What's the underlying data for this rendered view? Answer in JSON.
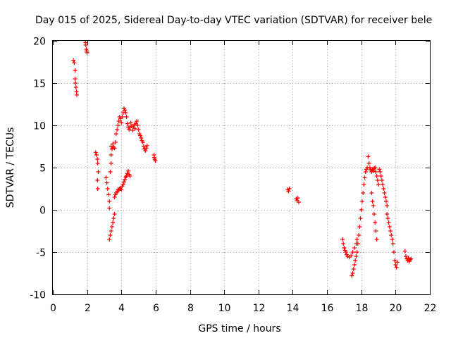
{
  "chart_data": {
    "type": "scatter",
    "title": "Day 015 of 2025, Sidereal Day-to-day VTEC variation (SDTVAR) for receiver bele",
    "xlabel": "GPS time / hours",
    "ylabel": "SDTVAR / TECUs",
    "xlim": [
      0,
      22
    ],
    "ylim": [
      -10,
      20
    ],
    "xticks": [
      0,
      2,
      4,
      6,
      8,
      10,
      12,
      14,
      16,
      18,
      20,
      22
    ],
    "yticks": [
      -10,
      -5,
      0,
      5,
      10,
      15,
      20
    ],
    "grid": true,
    "marker": "+",
    "color": "#ff0000",
    "series": [
      {
        "name": "SDTVAR",
        "points": [
          [
            1.2,
            17.7
          ],
          [
            1.25,
            17.4
          ],
          [
            1.3,
            16.5
          ],
          [
            1.3,
            15.5
          ],
          [
            1.32,
            15.0
          ],
          [
            1.35,
            14.5
          ],
          [
            1.38,
            14.0
          ],
          [
            1.4,
            13.6
          ],
          [
            1.9,
            19.8
          ],
          [
            1.92,
            19.5
          ],
          [
            1.95,
            19.0
          ],
          [
            1.97,
            18.8
          ],
          [
            2.0,
            18.6
          ],
          [
            2.5,
            6.8
          ],
          [
            2.55,
            6.5
          ],
          [
            2.6,
            6.0
          ],
          [
            2.62,
            5.5
          ],
          [
            2.65,
            4.5
          ],
          [
            2.6,
            3.5
          ],
          [
            2.62,
            2.5
          ],
          [
            3.1,
            3.8
          ],
          [
            3.15,
            3.2
          ],
          [
            3.2,
            2.5
          ],
          [
            3.25,
            1.8
          ],
          [
            3.3,
            1.0
          ],
          [
            3.3,
            0.2
          ],
          [
            3.3,
            -3.5
          ],
          [
            3.35,
            -3.0
          ],
          [
            3.4,
            -2.5
          ],
          [
            3.45,
            -2.0
          ],
          [
            3.5,
            -1.5
          ],
          [
            3.55,
            -1.0
          ],
          [
            3.6,
            -0.5
          ],
          [
            3.35,
            4.5
          ],
          [
            3.4,
            5.5
          ],
          [
            3.4,
            6.5
          ],
          [
            3.4,
            7.5
          ],
          [
            3.45,
            7.2
          ],
          [
            3.5,
            7.8
          ],
          [
            3.55,
            7.4
          ],
          [
            3.6,
            7.3
          ],
          [
            3.65,
            8.0
          ],
          [
            3.7,
            9.0
          ],
          [
            3.75,
            9.5
          ],
          [
            3.8,
            10.0
          ],
          [
            3.85,
            10.5
          ],
          [
            3.9,
            11.0
          ],
          [
            3.95,
            10.8
          ],
          [
            4.0,
            10.3
          ],
          [
            4.05,
            11.0
          ],
          [
            4.1,
            11.5
          ],
          [
            4.15,
            12.0
          ],
          [
            4.2,
            11.8
          ],
          [
            4.25,
            11.5
          ],
          [
            4.3,
            11.0
          ],
          [
            4.35,
            10.2
          ],
          [
            4.4,
            9.8
          ],
          [
            4.45,
            9.5
          ],
          [
            4.5,
            9.8
          ],
          [
            4.55,
            10.3
          ],
          [
            4.6,
            9.9
          ],
          [
            4.65,
            9.4
          ],
          [
            4.7,
            9.8
          ],
          [
            4.75,
            10.1
          ],
          [
            4.8,
            9.6
          ],
          [
            4.85,
            10.2
          ],
          [
            4.9,
            10.5
          ],
          [
            4.95,
            10.0
          ],
          [
            5.0,
            9.5
          ],
          [
            5.05,
            9.0
          ],
          [
            5.1,
            8.8
          ],
          [
            5.15,
            8.5
          ],
          [
            5.2,
            8.2
          ],
          [
            5.25,
            8.0
          ],
          [
            5.3,
            7.5
          ],
          [
            5.35,
            7.2
          ],
          [
            5.4,
            7.0
          ],
          [
            5.45,
            7.3
          ],
          [
            5.5,
            7.6
          ],
          [
            5.9,
            6.5
          ],
          [
            5.92,
            6.2
          ],
          [
            5.95,
            6.0
          ],
          [
            5.98,
            5.8
          ],
          [
            3.6,
            1.5
          ],
          [
            3.65,
            1.8
          ],
          [
            3.7,
            2.0
          ],
          [
            3.75,
            2.2
          ],
          [
            3.8,
            2.4
          ],
          [
            3.85,
            2.3
          ],
          [
            3.9,
            2.5
          ],
          [
            3.95,
            2.6
          ],
          [
            4.0,
            2.4
          ],
          [
            4.05,
            2.8
          ],
          [
            4.1,
            3.0
          ],
          [
            4.15,
            3.3
          ],
          [
            4.2,
            3.6
          ],
          [
            4.25,
            3.9
          ],
          [
            4.3,
            4.0
          ],
          [
            4.35,
            4.3
          ],
          [
            4.4,
            4.6
          ],
          [
            4.45,
            4.2
          ],
          [
            4.5,
            4.0
          ],
          [
            13.7,
            2.4
          ],
          [
            13.75,
            2.2
          ],
          [
            13.8,
            2.5
          ],
          [
            14.2,
            1.3
          ],
          [
            14.25,
            1.1
          ],
          [
            14.3,
            1.4
          ],
          [
            14.35,
            0.9
          ],
          [
            16.9,
            -3.5
          ],
          [
            16.95,
            -4.0
          ],
          [
            17.0,
            -4.5
          ],
          [
            17.05,
            -4.8
          ],
          [
            17.1,
            -5.0
          ],
          [
            17.15,
            -5.3
          ],
          [
            17.2,
            -5.5
          ],
          [
            17.3,
            -5.6
          ],
          [
            17.4,
            -5.4
          ],
          [
            17.5,
            -5.0
          ],
          [
            17.6,
            -4.5
          ],
          [
            17.7,
            -4.0
          ],
          [
            17.75,
            -3.5
          ],
          [
            17.45,
            -7.8
          ],
          [
            17.5,
            -7.5
          ],
          [
            17.55,
            -7.0
          ],
          [
            17.6,
            -6.5
          ],
          [
            17.65,
            -6.0
          ],
          [
            17.7,
            -5.5
          ],
          [
            17.75,
            -5.0
          ],
          [
            17.8,
            -4.0
          ],
          [
            17.85,
            -3.0
          ],
          [
            17.9,
            -2.0
          ],
          [
            17.95,
            -1.0
          ],
          [
            18.0,
            0.0
          ],
          [
            18.05,
            1.0
          ],
          [
            18.1,
            2.0
          ],
          [
            18.15,
            3.0
          ],
          [
            18.2,
            3.8
          ],
          [
            18.25,
            4.5
          ],
          [
            18.3,
            4.8
          ],
          [
            18.35,
            5.0
          ],
          [
            18.4,
            6.3
          ],
          [
            18.45,
            5.5
          ],
          [
            18.5,
            5.0
          ],
          [
            18.55,
            4.7
          ],
          [
            18.6,
            4.5
          ],
          [
            18.65,
            4.8
          ],
          [
            18.7,
            4.6
          ],
          [
            18.75,
            4.9
          ],
          [
            18.8,
            5.0
          ],
          [
            18.85,
            4.5
          ],
          [
            18.9,
            4.0
          ],
          [
            18.95,
            3.5
          ],
          [
            19.0,
            3.0
          ],
          [
            19.05,
            4.8
          ],
          [
            19.1,
            4.5
          ],
          [
            19.15,
            4.0
          ],
          [
            19.2,
            3.5
          ],
          [
            19.25,
            3.0
          ],
          [
            19.3,
            2.5
          ],
          [
            19.35,
            2.0
          ],
          [
            19.4,
            1.5
          ],
          [
            19.45,
            1.0
          ],
          [
            19.5,
            0.5
          ],
          [
            18.6,
            2.0
          ],
          [
            18.65,
            1.0
          ],
          [
            18.7,
            0.5
          ],
          [
            18.75,
            -0.5
          ],
          [
            18.8,
            -1.5
          ],
          [
            18.85,
            -2.5
          ],
          [
            18.9,
            -3.5
          ],
          [
            19.5,
            -0.5
          ],
          [
            19.55,
            -1.0
          ],
          [
            19.6,
            -1.5
          ],
          [
            19.65,
            -2.0
          ],
          [
            19.7,
            -2.5
          ],
          [
            19.75,
            -3.0
          ],
          [
            19.8,
            -3.5
          ],
          [
            19.85,
            -4.0
          ],
          [
            19.9,
            -5.0
          ],
          [
            19.95,
            -6.0
          ],
          [
            20.0,
            -6.5
          ],
          [
            20.05,
            -6.8
          ],
          [
            20.1,
            -6.2
          ],
          [
            20.55,
            -4.9
          ],
          [
            20.6,
            -5.5
          ],
          [
            20.65,
            -5.8
          ],
          [
            20.7,
            -6.0
          ],
          [
            20.75,
            -5.7
          ],
          [
            20.8,
            -6.1
          ],
          [
            20.85,
            -5.9
          ],
          [
            20.9,
            -5.8
          ]
        ]
      }
    ]
  }
}
